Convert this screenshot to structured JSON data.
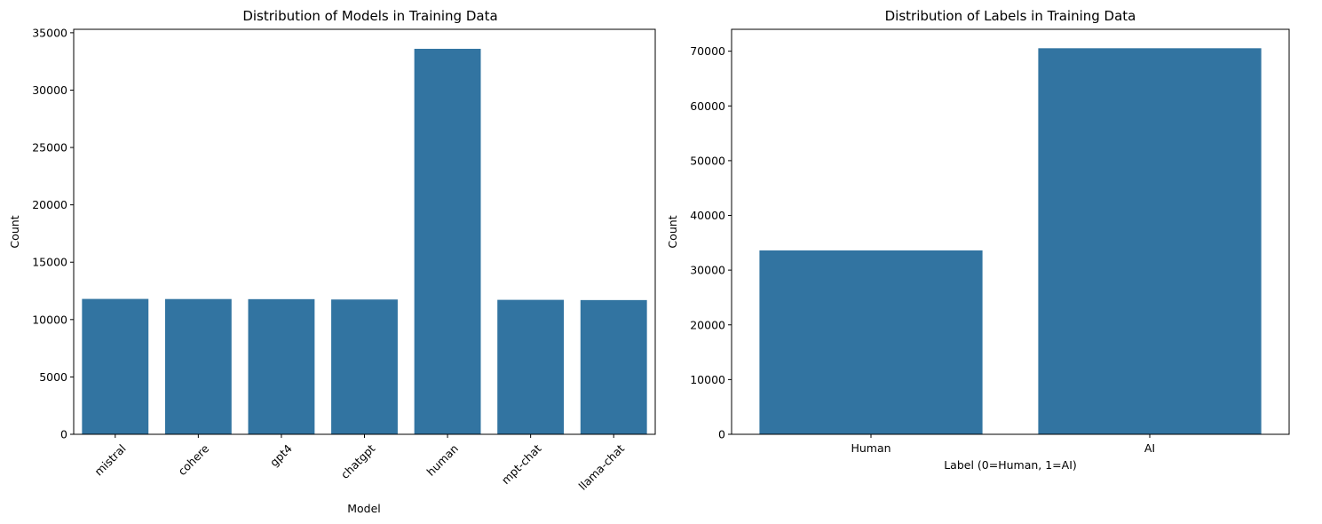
{
  "chart_data": [
    {
      "type": "bar",
      "title": "Distribution of Models in Training Data",
      "xlabel": "Model",
      "ylabel": "Count",
      "categories": [
        "mistral",
        "cohere",
        "gpt4",
        "chatgpt",
        "human",
        "mpt-chat",
        "llama-chat"
      ],
      "values": [
        11800,
        11790,
        11780,
        11750,
        33600,
        11720,
        11700
      ],
      "ylim": [
        0,
        35300
      ],
      "yticks": [
        0,
        5000,
        10000,
        15000,
        20000,
        25000,
        30000,
        35000
      ],
      "xtick_rotation": 45,
      "bar_color": "#3274a1",
      "grid": false
    },
    {
      "type": "bar",
      "title": "Distribution of Labels in Training Data",
      "xlabel": "Label (0=Human, 1=AI)",
      "ylabel": "Count",
      "categories": [
        "Human",
        "AI"
      ],
      "values": [
        33600,
        70540
      ],
      "ylim": [
        0,
        74000
      ],
      "yticks": [
        0,
        10000,
        20000,
        30000,
        40000,
        50000,
        60000,
        70000
      ],
      "xtick_rotation": 0,
      "bar_color": "#3274a1",
      "grid": false
    }
  ]
}
